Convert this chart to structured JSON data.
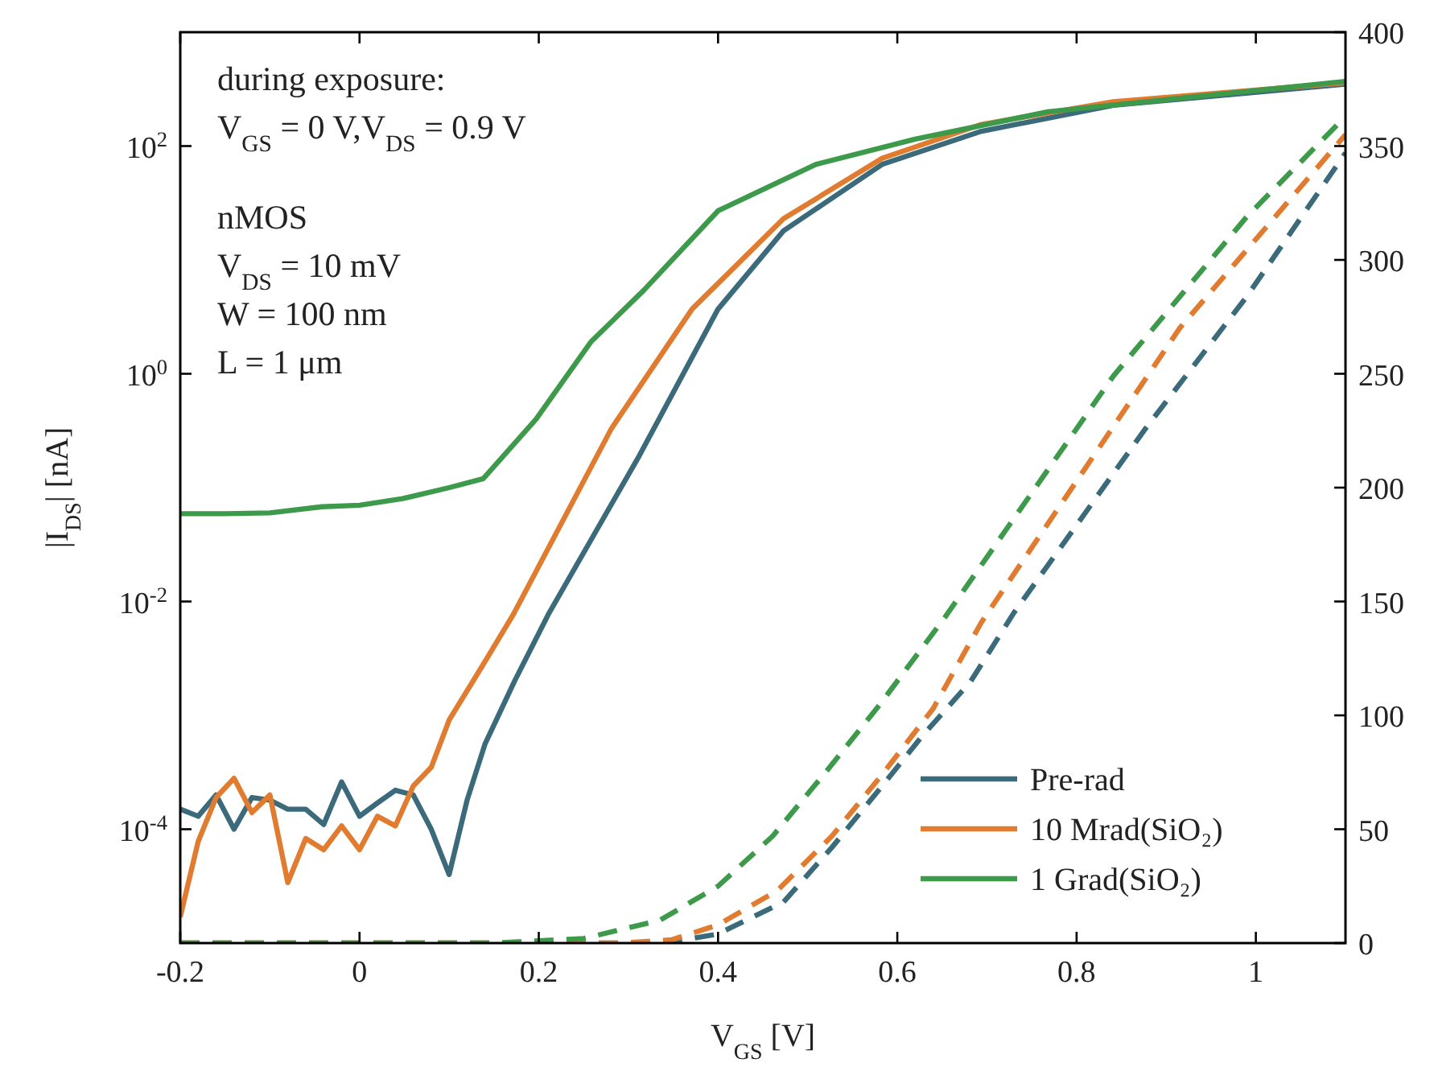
{
  "chart_data": {
    "type": "line",
    "xlabel": "V$_{GS}$ [V]",
    "ylabel": "|I$_{DS}$| [nA]",
    "xlim": [
      -0.2,
      1.1
    ],
    "xticks": [
      -0.2,
      0,
      0.2,
      0.4,
      0.6,
      0.8,
      1
    ],
    "ylim": [
      1e-05,
      1000
    ],
    "yticks": [
      {
        "value": 0.0001,
        "label": "10$^{-4}$"
      },
      {
        "value": 0.01,
        "label": "10$^{-2}$"
      },
      {
        "value": 1,
        "label": "10$^{0}$"
      },
      {
        "value": 100,
        "label": "10$^{2}$"
      }
    ],
    "y2lim": [
      0,
      400
    ],
    "y2ticks": [
      0,
      50,
      100,
      150,
      200,
      250,
      300,
      350,
      400
    ],
    "log": "y",
    "legend": "bottom right",
    "grid": false,
    "annotations": [
      "during exposure:",
      "V$_{GS}$ = 0 V,V$_{DS}$ = 0.9 V",
      "nMOS",
      "V$_{DS}$ = 10 mV",
      "W = 100 nm",
      "L = 1 μm"
    ],
    "series": [
      {
        "name": "Pre-rad",
        "color": "#3b6a7a",
        "line_style": "solid",
        "x": [
          -0.2,
          -0.18,
          -0.16,
          -0.14,
          -0.12,
          -0.1,
          -0.08,
          -0.06,
          -0.04,
          -0.02,
          0,
          0.02,
          0.04,
          0.06,
          0.08,
          0.1,
          0.12,
          0.14,
          0.173,
          0.211,
          0.312,
          0.4,
          0.473,
          0.583,
          0.694,
          0.841,
          1.1
        ],
        "values": [
          0.00015,
          0.00013,
          0.0002,
          0.0001,
          0.00019,
          0.00018,
          0.00015,
          0.00015,
          0.00011,
          0.00026,
          0.00013,
          0.00017,
          0.00022,
          0.0002,
          0.0001,
          4e-05,
          0.00018,
          0.00056,
          0.002,
          0.0078,
          0.19,
          3.7,
          18,
          69,
          135,
          228,
          350
        ]
      },
      {
        "name": "10 Mrad(SiO₂)",
        "color": "#e07b30",
        "line_style": "solid",
        "x": [
          -0.2,
          -0.18,
          -0.16,
          -0.14,
          -0.12,
          -0.1,
          -0.08,
          -0.06,
          -0.04,
          -0.02,
          0,
          0.02,
          0.04,
          0.06,
          0.08,
          0.1,
          0.138,
          0.172,
          0.281,
          0.371,
          0.473,
          0.583,
          0.694,
          0.841,
          1.1
        ],
        "values": [
          1.7e-05,
          7.8e-05,
          0.00019,
          0.00028,
          0.00014,
          0.0002,
          3.4e-05,
          8.3e-05,
          6.6e-05,
          0.000107,
          6.6e-05,
          0.00013,
          0.000107,
          0.00024,
          0.00035,
          0.00091,
          0.0028,
          0.0078,
          0.33,
          3.7,
          23,
          78,
          155,
          245,
          360
        ]
      },
      {
        "name": "1 Grad(SiO₂)",
        "color": "#3d9a4a",
        "line_style": "solid",
        "x": [
          -0.2,
          -0.15,
          -0.1,
          -0.042,
          0,
          0.048,
          0.1,
          0.138,
          0.197,
          0.258,
          0.317,
          0.4,
          0.509,
          0.62,
          0.768,
          1.1
        ],
        "values": [
          0.059,
          0.059,
          0.06,
          0.068,
          0.07,
          0.08,
          0.1,
          0.12,
          0.4,
          1.9,
          5.4,
          27,
          69,
          115,
          200,
          370
        ]
      },
      {
        "color": "#3b6a7a",
        "axis": "y2",
        "line_style": "dashed",
        "x": [
          -0.2,
          0.2,
          0.34,
          0.4,
          0.473,
          0.527,
          0.581,
          0.628,
          0.682,
          0.73,
          0.877,
          0.99,
          1.1
        ],
        "values": [
          0,
          0,
          0,
          4,
          18,
          42,
          68,
          91,
          115,
          145,
          226,
          284,
          347
        ]
      },
      {
        "color": "#e07b30",
        "axis": "y2",
        "line_style": "dashed",
        "x": [
          -0.2,
          0.2,
          0.29,
          0.348,
          0.4,
          0.466,
          0.527,
          0.581,
          0.64,
          0.694,
          0.915,
          1.1
        ],
        "values": [
          0,
          0,
          0,
          1.4,
          8,
          23,
          47,
          73,
          103,
          141,
          270,
          355
        ]
      },
      {
        "color": "#3d9a4a",
        "axis": "y2",
        "line_style": "dashed",
        "x": [
          -0.2,
          0.15,
          0.25,
          0.335,
          0.4,
          0.461,
          0.52,
          0.581,
          0.653,
          0.841,
          0.99,
          1.1
        ],
        "values": [
          0,
          0,
          2,
          10,
          25,
          47,
          75,
          105,
          143,
          249,
          319,
          363
        ]
      }
    ]
  }
}
